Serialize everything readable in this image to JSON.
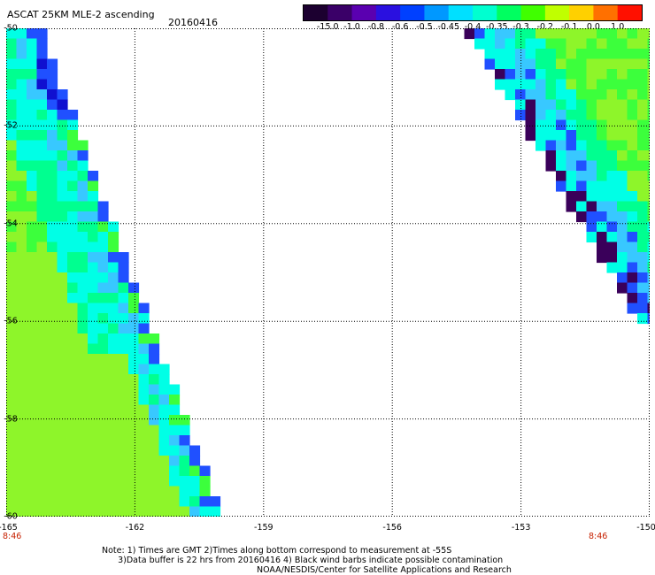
{
  "header": {
    "title": "ASCAT 25KM MLE-2 ascending",
    "date": "20160416"
  },
  "colorbar": {
    "ticks": [
      "-15.0",
      "-1.0",
      "-0.8",
      "-0.6",
      "-0.5",
      "-0.45",
      "-0.4",
      "-0.35",
      "-0.3",
      "-0.2",
      "-0.1",
      "0.0",
      "1.0"
    ],
    "colors": [
      "#1c0030",
      "#3a0068",
      "#5a00b0",
      "#2a10e0",
      "#0040ff",
      "#0098ff",
      "#00e0ff",
      "#00ffd0",
      "#00ff60",
      "#40ff00",
      "#c0ff00",
      "#ffd000",
      "#ff7000",
      "#ff1000"
    ]
  },
  "map": {
    "lat_labels": [
      "-50",
      "-52",
      "-54",
      "-56",
      "-58",
      "-60"
    ],
    "lat_values": [
      -50,
      -52,
      -54,
      -56,
      -58,
      -60
    ],
    "lon_labels": [
      "-165",
      "-162",
      "-159",
      "-156",
      "-153",
      "-150"
    ],
    "lon_values": [
      -165,
      -162,
      -159,
      -156,
      -153,
      -150
    ],
    "lon_range": [
      -165,
      -150
    ],
    "lat_range": [
      -50,
      -60
    ],
    "left_time": "8:46",
    "right_time": "8:46"
  },
  "notes": {
    "line1": "Note: 1) Times are GMT 2)Times along bottom correspond to measurement at -55S",
    "line2": "      3)Data buffer is 22 hrs from 20160416 4) Black wind barbs indicate possible contamination",
    "credit": "NOAA/NESDIS/Center for Satellite Applications and Research"
  }
}
